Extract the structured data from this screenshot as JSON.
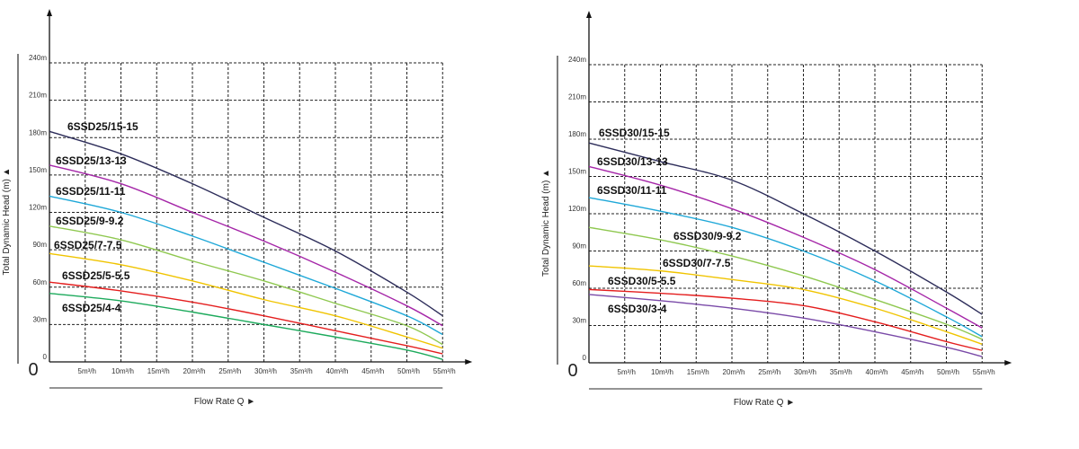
{
  "chart_data": [
    {
      "type": "line",
      "title": "",
      "xlabel": "Flow Rate Q",
      "ylabel": "Total Dynamic Head (m)",
      "origin_label": "0",
      "xlim": [
        0,
        55
      ],
      "ylim": [
        0,
        240
      ],
      "grid": true,
      "x_ticks": [
        "5m³/h",
        "10m³/h",
        "15m³/h",
        "20m³/h",
        "25m³/h",
        "30m³/h",
        "35m³/h",
        "40m³/h",
        "45m³/h",
        "50m³/h",
        "55m³/h"
      ],
      "y_ticks": [
        "0",
        "30m",
        "60m",
        "90m",
        "120m",
        "150m",
        "180m",
        "210m",
        "240m"
      ],
      "x": [
        0,
        10,
        20,
        30,
        40,
        50,
        55
      ],
      "series": [
        {
          "name": "6SSD25/15-15",
          "color": "#2d2d5a",
          "values": [
            185,
            167,
            143,
            116,
            89,
            56,
            37
          ]
        },
        {
          "name": "6SSD25/13-13",
          "color": "#a526a8",
          "values": [
            158,
            143,
            120,
            97,
            72,
            45,
            29
          ]
        },
        {
          "name": "6SSD25/11-11",
          "color": "#1fa8d8",
          "values": [
            133,
            120,
            101,
            80,
            59,
            37,
            22
          ]
        },
        {
          "name": "6SSD25/9-9.2",
          "color": "#8fc850",
          "values": [
            109,
            98,
            81,
            65,
            47,
            29,
            14
          ]
        },
        {
          "name": "6SSD25/7-7.5",
          "color": "#f0c400",
          "values": [
            87,
            78,
            65,
            50,
            37,
            20,
            11
          ]
        },
        {
          "name": "6SSD25/5-5.5",
          "color": "#e41e1e",
          "values": [
            64,
            57,
            48,
            37,
            25,
            13,
            6.5
          ]
        },
        {
          "name": "6SSD25/4-4",
          "color": "#1daa5c",
          "values": [
            55,
            49,
            40,
            30,
            20,
            9.5,
            2
          ]
        }
      ]
    },
    {
      "type": "line",
      "title": "",
      "xlabel": "Flow Rate Q",
      "ylabel": "Total Dynamic Head (m)",
      "origin_label": "0",
      "xlim": [
        0,
        55
      ],
      "ylim": [
        0,
        240
      ],
      "grid": true,
      "x_ticks": [
        "5m³/h",
        "10m³/h",
        "15m³/h",
        "20m³/h",
        "25m³/h",
        "30m³/h",
        "35m³/h",
        "40m³/h",
        "45m³/h",
        "50m³/h",
        "55m³/h"
      ],
      "y_ticks": [
        "0",
        "30m",
        "60m",
        "90m",
        "120m",
        "150m",
        "180m",
        "210m",
        "240m"
      ],
      "x": [
        0,
        10,
        20,
        30,
        40,
        50,
        55
      ],
      "series": [
        {
          "name": "6SSD30/15-15",
          "color": "#2d2d5a",
          "values": [
            177,
            162,
            147,
            120,
            90,
            57,
            39
          ]
        },
        {
          "name": "6SSD30/13-13",
          "color": "#a526a8",
          "values": [
            158,
            143,
            124,
            101,
            75,
            44,
            28
          ]
        },
        {
          "name": "6SSD30/11-11",
          "color": "#1fa8d8",
          "values": [
            133,
            122,
            109,
            90,
            66,
            37,
            21
          ]
        },
        {
          "name": "6SSD30/9-9.2",
          "color": "#8fc850",
          "values": [
            109,
            99,
            86,
            70,
            51,
            31,
            19
          ]
        },
        {
          "name": "6SSD30/7-7.5",
          "color": "#f0c400",
          "values": [
            78,
            74,
            67,
            59,
            44,
            25,
            15
          ]
        },
        {
          "name": "6SSD30/5-5.5",
          "color": "#e41e1e",
          "values": [
            59,
            56,
            52,
            46,
            33,
            17,
            10
          ]
        },
        {
          "name": "6SSD30/3-4",
          "color": "#7a4aa8",
          "values": [
            55,
            50,
            44,
            36,
            25,
            12.5,
            5
          ]
        }
      ]
    }
  ]
}
